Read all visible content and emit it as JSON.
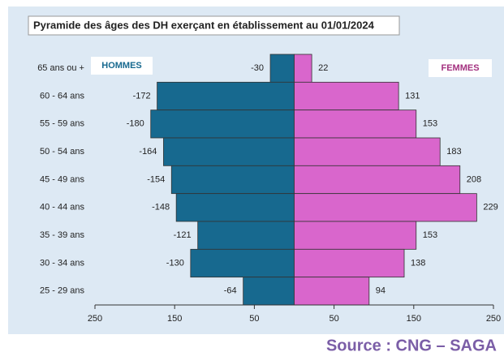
{
  "chart_data": {
    "type": "pyramid",
    "title": "Pyramide des âges des DH exerçant en établissement au 01/01/2024",
    "categories": [
      "65 ans ou +",
      "60 - 64 ans",
      "55 - 59 ans",
      "50 - 54 ans",
      "45 - 49 ans",
      "40 - 44 ans",
      "35 - 39 ans",
      "30 - 34 ans",
      "25 - 29 ans"
    ],
    "series": [
      {
        "name": "HOMMES",
        "color": "#17698f",
        "values": [
          -30,
          -172,
          -180,
          -164,
          -154,
          -148,
          -121,
          -130,
          -64
        ]
      },
      {
        "name": "FEMMES",
        "color": "#d966cc",
        "values": [
          22,
          131,
          153,
          183,
          208,
          229,
          153,
          138,
          94
        ]
      }
    ],
    "xlim": [
      -250,
      250
    ],
    "xticks": [
      {
        "value": -250,
        "label": "250"
      },
      {
        "value": -150,
        "label": "150"
      },
      {
        "value": -50,
        "label": "50"
      },
      50,
      150,
      250
    ],
    "source": "Source : CNG – SAGA"
  }
}
